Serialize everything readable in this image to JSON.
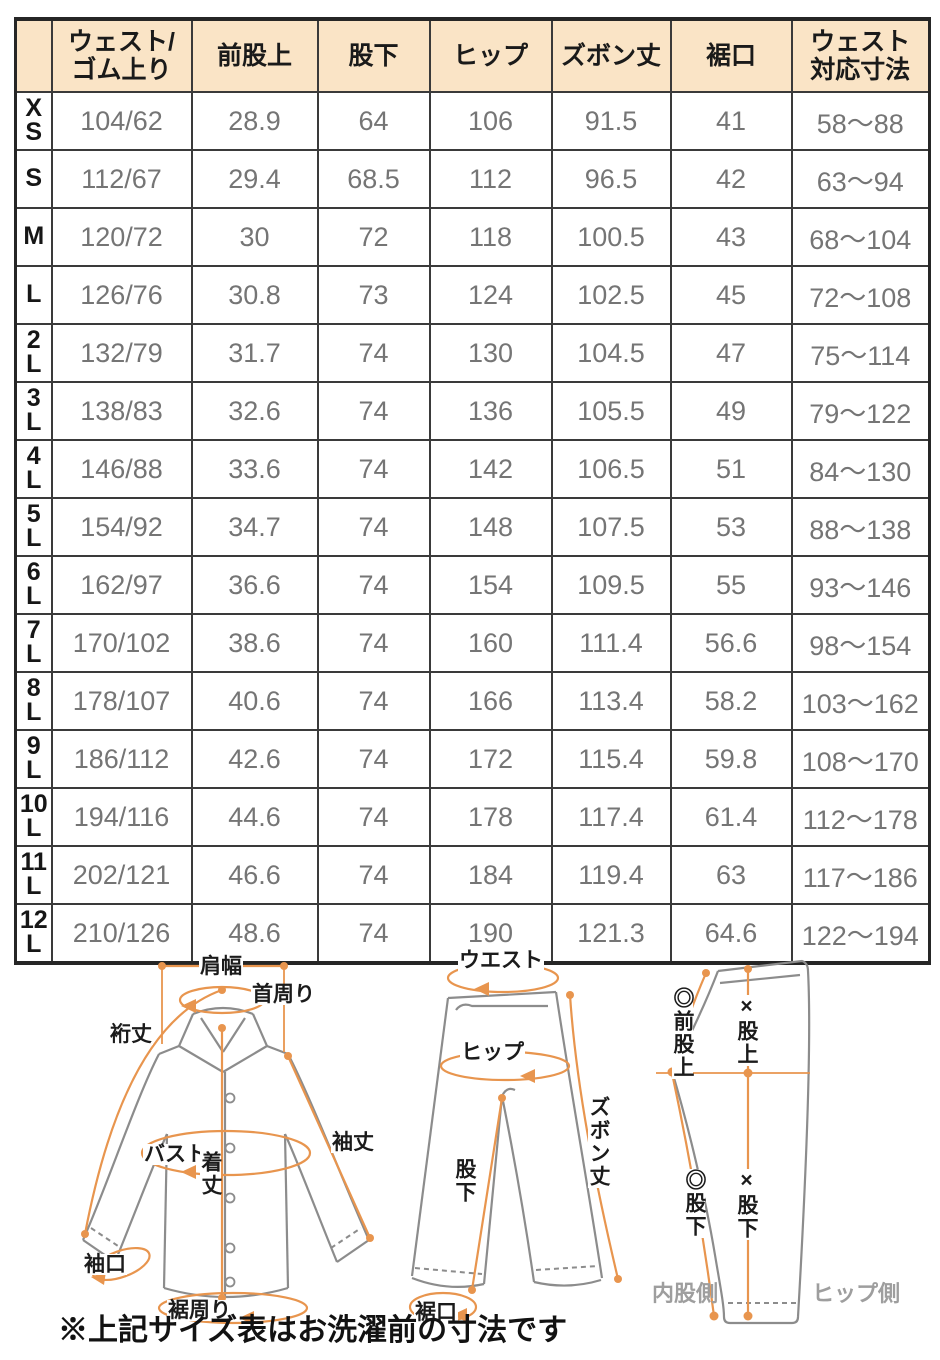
{
  "colors": {
    "header_bg": "#FAE4C6",
    "table_border": "#3a3a3a",
    "value_text": "#757575",
    "label_text": "#1b1b1b",
    "garment_outline": "#8C8C8C",
    "measure_arrow": "#E8954E",
    "side_label_gray": "#9E9E9E"
  },
  "table": {
    "headers": [
      "",
      "ウェスト/\nゴム上り",
      "前股上",
      "股下",
      "ヒップ",
      "ズボン丈",
      "裾口",
      "ウェスト\n対応寸法"
    ],
    "rows": [
      {
        "size": "X\nS",
        "values": [
          "104/62",
          "28.9",
          "64",
          "106",
          "91.5",
          "41",
          "58〜88"
        ]
      },
      {
        "size": "S",
        "values": [
          "112/67",
          "29.4",
          "68.5",
          "112",
          "96.5",
          "42",
          "63〜94"
        ]
      },
      {
        "size": "M",
        "values": [
          "120/72",
          "30",
          "72",
          "118",
          "100.5",
          "43",
          "68〜104"
        ]
      },
      {
        "size": "L",
        "values": [
          "126/76",
          "30.8",
          "73",
          "124",
          "102.5",
          "45",
          "72〜108"
        ]
      },
      {
        "size": "2\nL",
        "values": [
          "132/79",
          "31.7",
          "74",
          "130",
          "104.5",
          "47",
          "75〜114"
        ]
      },
      {
        "size": "3\nL",
        "values": [
          "138/83",
          "32.6",
          "74",
          "136",
          "105.5",
          "49",
          "79〜122"
        ]
      },
      {
        "size": "4\nL",
        "values": [
          "146/88",
          "33.6",
          "74",
          "142",
          "106.5",
          "51",
          "84〜130"
        ]
      },
      {
        "size": "5\nL",
        "values": [
          "154/92",
          "34.7",
          "74",
          "148",
          "107.5",
          "53",
          "88〜138"
        ]
      },
      {
        "size": "6\nL",
        "values": [
          "162/97",
          "36.6",
          "74",
          "154",
          "109.5",
          "55",
          "93〜146"
        ]
      },
      {
        "size": "7\nL",
        "values": [
          "170/102",
          "38.6",
          "74",
          "160",
          "111.4",
          "56.6",
          "98〜154"
        ]
      },
      {
        "size": "8\nL",
        "values": [
          "178/107",
          "40.6",
          "74",
          "166",
          "113.4",
          "58.2",
          "103〜162"
        ]
      },
      {
        "size": "9\nL",
        "values": [
          "186/112",
          "42.6",
          "74",
          "172",
          "115.4",
          "59.8",
          "108〜170"
        ]
      },
      {
        "size": "10\nL",
        "values": [
          "194/116",
          "44.6",
          "74",
          "178",
          "117.4",
          "61.4",
          "112〜178"
        ]
      },
      {
        "size": "11\nL",
        "values": [
          "202/121",
          "46.6",
          "74",
          "184",
          "119.4",
          "63",
          "117〜186"
        ]
      },
      {
        "size": "12\nL",
        "values": [
          "210/126",
          "48.6",
          "74",
          "190",
          "121.3",
          "64.6",
          "122〜194"
        ]
      }
    ]
  },
  "diagrams": {
    "shirt": {
      "shoulder_width": "肩幅",
      "neck_round": "首周り",
      "yuki_length": "裄丈",
      "bust": "バスト",
      "sleeve_length": "袖丈",
      "body_length": "着丈",
      "cuff_opening": "袖口",
      "hem_round": "裾周り"
    },
    "pants_front": {
      "waist": "ウエスト",
      "hip": "ヒップ",
      "pants_length": "ズボン丈",
      "inseam": "股下",
      "hem_opening": "裾口"
    },
    "pants_side": {
      "front_rise": "◎前股上",
      "rise": "×股上",
      "inseam_inner": "◎股下",
      "inseam_hip": "×股下",
      "inner_side": "内股側",
      "hip_side": "ヒップ側"
    }
  },
  "note": "※上記サイズ表はお洗濯前の寸法です"
}
